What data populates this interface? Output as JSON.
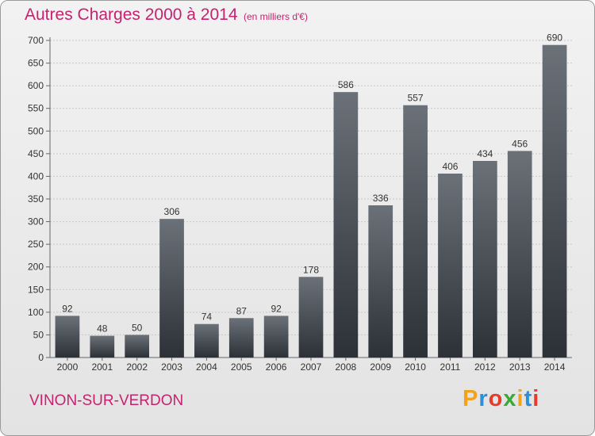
{
  "header": {
    "title": "Autres Charges 2000 à 2014",
    "subtitle": "(en milliers d'€)"
  },
  "footer": {
    "city": "VINON-SUR-VERDON",
    "logo_letters": [
      "P",
      "r",
      "o",
      "x",
      "i",
      "t",
      "i"
    ]
  },
  "colors": {
    "title": "#c6226f",
    "bar_top": "#6b7178",
    "bar_bottom": "#2c3138",
    "grid": "#c8c8c8",
    "logo": [
      "#f3a21a",
      "#2d8fd5",
      "#e83a2a",
      "#3aa935",
      "#f3a21a",
      "#2d8fd5",
      "#e83a2a"
    ]
  },
  "chart_data": {
    "type": "bar",
    "title": "Autres Charges 2000 à 2014",
    "subtitle": "(en milliers d'€)",
    "categories": [
      "2000",
      "2001",
      "2002",
      "2003",
      "2004",
      "2005",
      "2006",
      "2007",
      "2008",
      "2009",
      "2010",
      "2011",
      "2012",
      "2013",
      "2014"
    ],
    "values": [
      92,
      48,
      50,
      306,
      74,
      87,
      92,
      178,
      586,
      336,
      557,
      406,
      434,
      456,
      690
    ],
    "ylim": [
      0,
      700
    ],
    "yticks": [
      0,
      50,
      100,
      150,
      200,
      250,
      300,
      350,
      400,
      450,
      500,
      550,
      600,
      650,
      700
    ],
    "grid": true,
    "data_labels": true
  }
}
